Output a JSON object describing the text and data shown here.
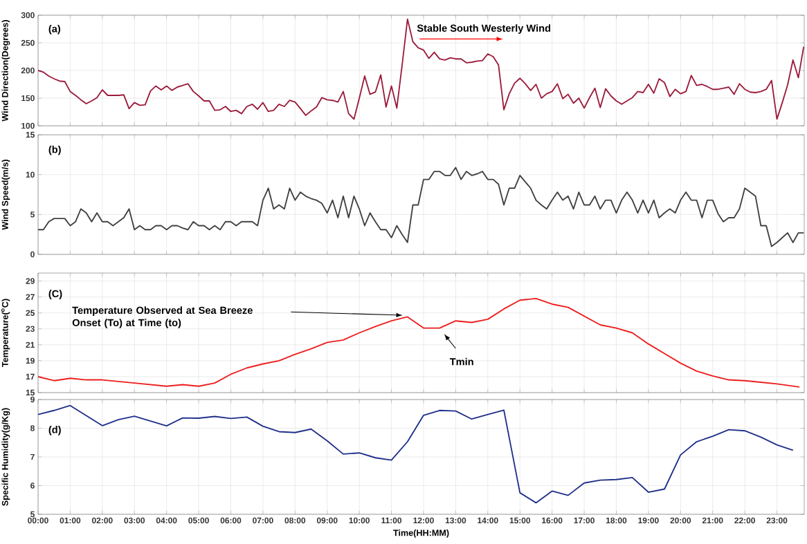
{
  "chart_data": [
    {
      "type": "line",
      "ylabel": "Wind Direction(Degrees)",
      "xlim": [
        0,
        23.85
      ],
      "xticks": [
        0,
        1,
        2,
        3,
        4,
        5,
        6,
        7,
        8,
        9,
        10,
        11,
        12,
        13,
        14,
        15,
        16,
        17,
        18,
        19,
        20,
        21,
        22,
        23
      ],
      "ylim": [
        100,
        300
      ],
      "yticks": [
        100,
        150,
        200,
        250,
        300
      ],
      "grid": true,
      "tick_labels": "y",
      "x": [
        0,
        0.167,
        0.333,
        0.5,
        0.667,
        0.833,
        1,
        1.167,
        1.333,
        1.5,
        1.667,
        1.833,
        2,
        2.167,
        2.333,
        2.5,
        2.667,
        2.833,
        3,
        3.167,
        3.333,
        3.5,
        3.667,
        3.833,
        4,
        4.167,
        4.333,
        4.5,
        4.667,
        4.833,
        5,
        5.167,
        5.333,
        5.5,
        5.667,
        5.833,
        6,
        6.167,
        6.333,
        6.5,
        6.667,
        6.833,
        7,
        7.167,
        7.333,
        7.5,
        7.667,
        7.833,
        8,
        8.167,
        8.333,
        8.5,
        8.667,
        8.833,
        9,
        9.167,
        9.333,
        9.5,
        9.667,
        9.833,
        10,
        10.167,
        10.333,
        10.5,
        10.667,
        10.833,
        11,
        11.167,
        11.333,
        11.5,
        11.667,
        11.833,
        12,
        12.167,
        12.333,
        12.5,
        12.667,
        12.833,
        13,
        13.167,
        13.333,
        13.5,
        13.667,
        13.833,
        14,
        14.167,
        14.333,
        14.5,
        14.667,
        14.833,
        15,
        15.167,
        15.333,
        15.5,
        15.667,
        15.833,
        16,
        16.167,
        16.333,
        16.5,
        16.667,
        16.833,
        17,
        17.167,
        17.333,
        17.5,
        17.667,
        17.833,
        18,
        18.167,
        18.333,
        18.5,
        18.667,
        18.833,
        19,
        19.167,
        19.333,
        19.5,
        19.667,
        19.833,
        20,
        20.167,
        20.333,
        20.5,
        20.667,
        20.833,
        21,
        21.167,
        21.333,
        21.5,
        21.667,
        21.833,
        22,
        22.167,
        22.333,
        22.5,
        22.667,
        22.833,
        23,
        23.167,
        23.333,
        23.5,
        23.667,
        23.833
      ],
      "series": [
        {
          "color": "#9b1b3a",
          "values": [
            200,
            197,
            190,
            185,
            181,
            180,
            162,
            155,
            147,
            140,
            145,
            151,
            165,
            155,
            155,
            155,
            156,
            131,
            142,
            137,
            138,
            163,
            172,
            165,
            172,
            164,
            170,
            173,
            176,
            162,
            154,
            145,
            145,
            128,
            129,
            135,
            126,
            128,
            122,
            135,
            139,
            130,
            142,
            126,
            128,
            139,
            135,
            146,
            143,
            131,
            119,
            127,
            134,
            151,
            147,
            146,
            143,
            162,
            122,
            112,
            150,
            190,
            157,
            161,
            192,
            134,
            172,
            132,
            210,
            293,
            252,
            241,
            237,
            222,
            233,
            221,
            219,
            223,
            221,
            221,
            214,
            215,
            217,
            218,
            230,
            225,
            210,
            129,
            158,
            177,
            186,
            176,
            164,
            175,
            150,
            158,
            162,
            176,
            149,
            157,
            141,
            150,
            132,
            151,
            168,
            133,
            167,
            154,
            145,
            139,
            145,
            151,
            162,
            160,
            175,
            159,
            185,
            178,
            153,
            166,
            158,
            162,
            191,
            173,
            175,
            171,
            166,
            166,
            168,
            170,
            157,
            176,
            166,
            161,
            160,
            162,
            166,
            182,
            112,
            142,
            174,
            219,
            187,
            243
          ]
        }
      ],
      "annotations": [
        "(a)",
        "Stable South Westerly Wind"
      ]
    },
    {
      "type": "line",
      "ylabel": "Wind Speed(m/s)",
      "xlim": [
        0,
        23.85
      ],
      "xticks": [
        0,
        1,
        2,
        3,
        4,
        5,
        6,
        7,
        8,
        9,
        10,
        11,
        12,
        13,
        14,
        15,
        16,
        17,
        18,
        19,
        20,
        21,
        22,
        23
      ],
      "ylim": [
        0,
        15
      ],
      "yticks": [
        0,
        5,
        10,
        15
      ],
      "grid": true,
      "tick_labels": "y",
      "x": [
        0,
        0.167,
        0.333,
        0.5,
        0.667,
        0.833,
        1,
        1.167,
        1.333,
        1.5,
        1.667,
        1.833,
        2,
        2.167,
        2.333,
        2.5,
        2.667,
        2.833,
        3,
        3.167,
        3.333,
        3.5,
        3.667,
        3.833,
        4,
        4.167,
        4.333,
        4.5,
        4.667,
        4.833,
        5,
        5.167,
        5.333,
        5.5,
        5.667,
        5.833,
        6,
        6.167,
        6.333,
        6.5,
        6.667,
        6.833,
        7,
        7.167,
        7.333,
        7.5,
        7.667,
        7.833,
        8,
        8.167,
        8.333,
        8.5,
        8.667,
        8.833,
        9,
        9.167,
        9.333,
        9.5,
        9.667,
        9.833,
        10,
        10.167,
        10.333,
        10.5,
        10.667,
        10.833,
        11,
        11.167,
        11.333,
        11.5,
        11.667,
        11.833,
        12,
        12.167,
        12.333,
        12.5,
        12.667,
        12.833,
        13,
        13.167,
        13.333,
        13.5,
        13.667,
        13.833,
        14,
        14.167,
        14.333,
        14.5,
        14.667,
        14.833,
        15,
        15.167,
        15.333,
        15.5,
        15.667,
        15.833,
        16,
        16.167,
        16.333,
        16.5,
        16.667,
        16.833,
        17,
        17.167,
        17.333,
        17.5,
        17.667,
        17.833,
        18,
        18.167,
        18.333,
        18.5,
        18.667,
        18.833,
        19,
        19.167,
        19.333,
        19.5,
        19.667,
        19.833,
        20,
        20.167,
        20.333,
        20.5,
        20.667,
        20.833,
        21,
        21.167,
        21.333,
        21.5,
        21.667,
        21.833,
        22,
        22.167,
        22.333,
        22.5,
        22.667,
        22.833,
        23,
        23.167,
        23.333,
        23.5,
        23.667,
        23.833
      ],
      "series": [
        {
          "color": "#404040",
          "values": [
            3.1,
            3.1,
            4.1,
            4.5,
            4.5,
            4.5,
            3.6,
            4.1,
            5.7,
            5.2,
            4.1,
            5.2,
            4.1,
            4.1,
            3.6,
            4.1,
            4.6,
            5.7,
            3.1,
            3.6,
            3.1,
            3.1,
            3.6,
            3.6,
            3.1,
            3.6,
            3.6,
            3.3,
            3.1,
            4.1,
            3.6,
            3.6,
            3.1,
            3.6,
            3.1,
            4.1,
            4.1,
            3.6,
            4.1,
            4.1,
            4.1,
            3.6,
            6.8,
            8.3,
            5.7,
            6.2,
            5.7,
            8.3,
            6.8,
            7.8,
            7.3,
            7.0,
            6.8,
            6.4,
            5.2,
            6.8,
            4.6,
            7.3,
            4.6,
            7.3,
            5.7,
            3.6,
            5.2,
            4.1,
            3.1,
            3.1,
            2.1,
            3.6,
            2.5,
            1.5,
            6.2,
            6.2,
            9.4,
            9.4,
            10.4,
            10.4,
            9.9,
            9.9,
            10.9,
            9.4,
            10.4,
            9.9,
            10.1,
            10.4,
            9.4,
            9.4,
            8.8,
            6.2,
            8.3,
            8.3,
            9.9,
            9.1,
            8.3,
            6.8,
            6.2,
            5.7,
            6.8,
            7.8,
            6.8,
            7.3,
            5.7,
            7.8,
            6.2,
            6.2,
            7.3,
            5.7,
            6.8,
            6.8,
            5.2,
            6.8,
            7.8,
            6.8,
            5.2,
            6.8,
            5.2,
            6.8,
            4.6,
            5.2,
            5.7,
            5.2,
            6.8,
            7.8,
            6.8,
            6.8,
            4.6,
            6.8,
            6.8,
            5.1,
            4.1,
            4.6,
            4.6,
            5.7,
            8.3,
            7.8,
            7.3,
            3.6,
            3.6,
            1.0,
            1.5,
            2.1,
            2.7,
            1.5,
            2.7,
            2.7
          ]
        }
      ],
      "annotations": [
        "(b)"
      ]
    },
    {
      "type": "line",
      "ylabel": "Temperature($^{o}$C)",
      "xlim": [
        0,
        23.85
      ],
      "xticks": [
        0,
        1,
        2,
        3,
        4,
        5,
        6,
        7,
        8,
        9,
        10,
        11,
        12,
        13,
        14,
        15,
        16,
        17,
        18,
        19,
        20,
        21,
        22,
        23
      ],
      "ylim": [
        15,
        30
      ],
      "yticks": [
        15,
        17,
        19,
        21,
        23,
        25,
        27,
        29
      ],
      "grid": true,
      "tick_labels": "y",
      "x": [
        0,
        0.5,
        1,
        1.5,
        2,
        2.5,
        3,
        3.5,
        4,
        4.5,
        5,
        5.5,
        6,
        6.5,
        7,
        7.5,
        8,
        8.5,
        9,
        9.5,
        10,
        10.5,
        11,
        11.5,
        12,
        12.5,
        13,
        13.5,
        14,
        14.5,
        15,
        15.5,
        16,
        16.5,
        17,
        17.5,
        18,
        18.5,
        19,
        19.5,
        20,
        20.5,
        21,
        21.5,
        22,
        22.5,
        23,
        23.7
      ],
      "series": [
        {
          "color": "#ee1c1c",
          "values": [
            17.0,
            16.5,
            16.8,
            16.6,
            16.6,
            16.4,
            16.2,
            16.0,
            15.8,
            16.0,
            15.8,
            16.2,
            17.3,
            18.1,
            18.6,
            19.0,
            19.8,
            20.5,
            21.3,
            21.6,
            22.5,
            23.3,
            24.0,
            24.5,
            23.1,
            23.1,
            24.0,
            23.8,
            24.2,
            25.5,
            26.6,
            26.8,
            26.1,
            25.7,
            24.6,
            23.5,
            23.1,
            22.5,
            21.1,
            19.9,
            18.7,
            17.7,
            17.1,
            16.6,
            16.5,
            16.3,
            16.1,
            15.7
          ]
        }
      ],
      "annotations": [
        "(C)",
        "Temperature Observed at Sea Breeze Onset (To) at Time (to)",
        "Tmin"
      ]
    },
    {
      "type": "line",
      "ylabel": "Specific Humidity(g/Kg)",
      "xlabel": "Time(HH:MM)",
      "xlim": [
        0,
        23.85
      ],
      "xticks": [
        {
          "value": 0,
          "label": "00:00"
        },
        {
          "value": 1,
          "label": "01:00"
        },
        {
          "value": 2,
          "label": "02:00"
        },
        {
          "value": 3,
          "label": "03:00"
        },
        {
          "value": 4,
          "label": "04:00"
        },
        {
          "value": 5,
          "label": "05:00"
        },
        {
          "value": 6,
          "label": "06:00"
        },
        {
          "value": 7,
          "label": "07:00"
        },
        {
          "value": 8,
          "label": "08:00"
        },
        {
          "value": 9,
          "label": "09:00"
        },
        {
          "value": 10,
          "label": "10:00"
        },
        {
          "value": 11,
          "label": "11:00"
        },
        {
          "value": 12,
          "label": "12:00"
        },
        {
          "value": 13,
          "label": "13:00"
        },
        {
          "value": 14,
          "label": "14:00"
        },
        {
          "value": 15,
          "label": "15:00"
        },
        {
          "value": 16,
          "label": "16:00"
        },
        {
          "value": 17,
          "label": "17:00"
        },
        {
          "value": 18,
          "label": "18:00"
        },
        {
          "value": 19,
          "label": "19:00"
        },
        {
          "value": 20,
          "label": "20:00"
        },
        {
          "value": 21,
          "label": "21:00"
        },
        {
          "value": 22,
          "label": "22:00"
        },
        {
          "value": 23,
          "label": "23:00"
        }
      ],
      "ylim": [
        5,
        9
      ],
      "yticks": [
        5,
        6,
        7,
        8,
        9
      ],
      "grid": true,
      "x": [
        0,
        0.5,
        1,
        1.5,
        2,
        2.5,
        3,
        3.5,
        4,
        4.5,
        5,
        5.5,
        6,
        6.5,
        7,
        7.5,
        8,
        8.5,
        9,
        9.5,
        10,
        10.5,
        11,
        11.5,
        12,
        12.5,
        13,
        13.5,
        14,
        14.5,
        15,
        15.5,
        16,
        16.5,
        17,
        17.5,
        18,
        18.5,
        19,
        19.5,
        20,
        20.5,
        21,
        21.5,
        22,
        22.5,
        23,
        23.5
      ],
      "series": [
        {
          "color": "#1f2f8a",
          "values": [
            8.48,
            8.62,
            8.79,
            8.44,
            8.09,
            8.3,
            8.42,
            8.25,
            8.08,
            8.36,
            8.35,
            8.41,
            8.34,
            8.39,
            8.07,
            7.88,
            7.85,
            7.97,
            7.56,
            7.1,
            7.14,
            6.97,
            6.89,
            7.53,
            8.45,
            8.62,
            8.6,
            8.32,
            8.48,
            8.63,
            5.75,
            5.4,
            5.81,
            5.66,
            6.09,
            6.19,
            6.21,
            6.28,
            5.77,
            5.88,
            7.07,
            7.53,
            7.72,
            7.95,
            7.91,
            7.69,
            7.42,
            7.23
          ]
        }
      ],
      "annotations": [
        "(d)"
      ]
    }
  ]
}
